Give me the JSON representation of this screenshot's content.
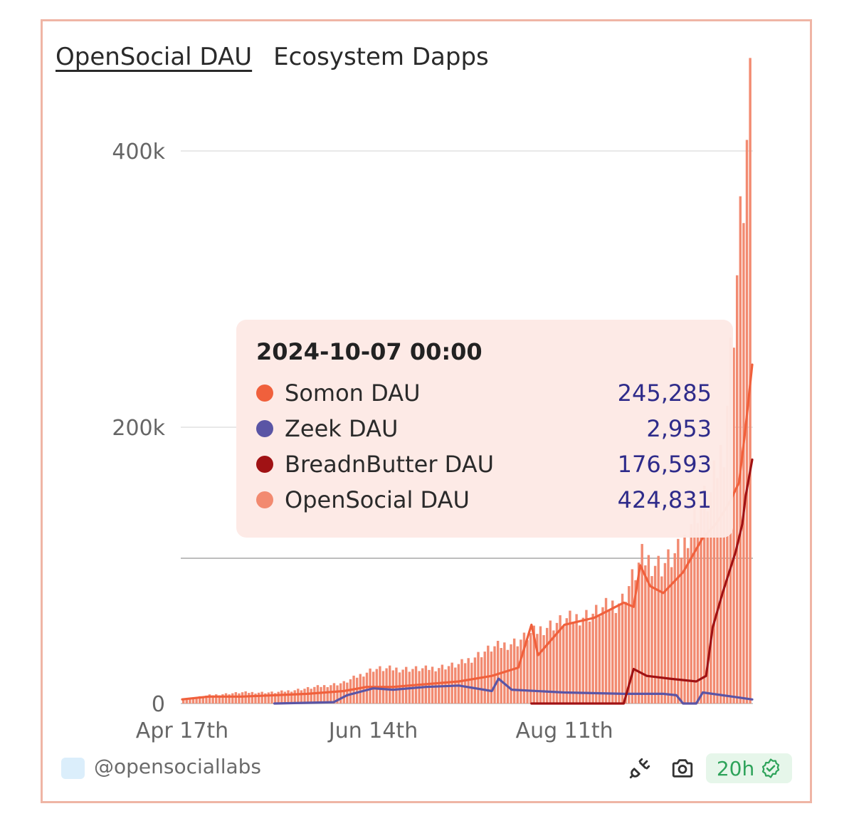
{
  "tabs": [
    {
      "label": "OpenSocial DAU",
      "active": true
    },
    {
      "label": "Ecosystem Dapps",
      "active": false
    }
  ],
  "chart_data": {
    "type": "bar",
    "x_start": "2024-04-17",
    "x_end": "2024-10-07",
    "xticks": [
      "Apr 17th",
      "Jun 14th",
      "Aug 11th"
    ],
    "yticks": [
      "0",
      "200k",
      "400k"
    ],
    "ylim": [
      0,
      430000
    ],
    "grid": true,
    "series": [
      {
        "name": "OpenSocial DAU",
        "type": "bar",
        "color": "#f28a70",
        "points": [
          [
            "2024-04-17",
            3000
          ],
          [
            "2024-04-25",
            6000
          ],
          [
            "2024-05-05",
            8000
          ],
          [
            "2024-05-15",
            8000
          ],
          [
            "2024-05-25",
            11000
          ],
          [
            "2024-06-05",
            15000
          ],
          [
            "2024-06-14",
            25000
          ],
          [
            "2024-06-20",
            25000
          ],
          [
            "2024-06-30",
            25000
          ],
          [
            "2024-07-10",
            28000
          ],
          [
            "2024-07-20",
            40000
          ],
          [
            "2024-07-28",
            45000
          ],
          [
            "2024-08-05",
            55000
          ],
          [
            "2024-08-11",
            60000
          ],
          [
            "2024-08-20",
            65000
          ],
          [
            "2024-08-29",
            75000
          ],
          [
            "2024-09-04",
            105000
          ],
          [
            "2024-09-10",
            100000
          ],
          [
            "2024-09-16",
            110000
          ],
          [
            "2024-09-20",
            140000
          ],
          [
            "2024-09-25",
            150000
          ],
          [
            "2024-09-29",
            190000
          ],
          [
            "2024-10-02",
            280000
          ],
          [
            "2024-10-04",
            340000
          ],
          [
            "2024-10-06",
            400000
          ],
          [
            "2024-10-07",
            424831
          ]
        ]
      },
      {
        "name": "Somon DAU",
        "type": "line",
        "color": "#f0603c",
        "points": [
          [
            "2024-04-17",
            3000
          ],
          [
            "2024-04-25",
            5000
          ],
          [
            "2024-05-05",
            5000
          ],
          [
            "2024-05-15",
            6000
          ],
          [
            "2024-05-25",
            7000
          ],
          [
            "2024-06-05",
            9000
          ],
          [
            "2024-06-12",
            12000
          ],
          [
            "2024-06-20",
            12000
          ],
          [
            "2024-06-30",
            14000
          ],
          [
            "2024-07-10",
            16000
          ],
          [
            "2024-07-20",
            20000
          ],
          [
            "2024-07-28",
            26000
          ],
          [
            "2024-08-01",
            57000
          ],
          [
            "2024-08-03",
            35000
          ],
          [
            "2024-08-11",
            57000
          ],
          [
            "2024-08-20",
            62000
          ],
          [
            "2024-08-29",
            73000
          ],
          [
            "2024-09-01",
            70000
          ],
          [
            "2024-09-03",
            100000
          ],
          [
            "2024-09-06",
            85000
          ],
          [
            "2024-09-10",
            80000
          ],
          [
            "2024-09-16",
            95000
          ],
          [
            "2024-09-22",
            120000
          ],
          [
            "2024-09-26",
            130000
          ],
          [
            "2024-09-30",
            145000
          ],
          [
            "2024-10-03",
            160000
          ],
          [
            "2024-10-05",
            200000
          ],
          [
            "2024-10-07",
            245285
          ]
        ]
      },
      {
        "name": "Zeek DAU",
        "type": "line",
        "color": "#5a55a5",
        "points": [
          [
            "2024-05-15",
            0
          ],
          [
            "2024-06-02",
            1000
          ],
          [
            "2024-06-06",
            6000
          ],
          [
            "2024-06-14",
            11000
          ],
          [
            "2024-06-20",
            10000
          ],
          [
            "2024-06-30",
            12000
          ],
          [
            "2024-07-10",
            13000
          ],
          [
            "2024-07-20",
            9000
          ],
          [
            "2024-07-22",
            18000
          ],
          [
            "2024-07-26",
            10000
          ],
          [
            "2024-08-11",
            8000
          ],
          [
            "2024-08-29",
            7000
          ],
          [
            "2024-09-10",
            7000
          ],
          [
            "2024-09-14",
            6000
          ],
          [
            "2024-09-16",
            0
          ],
          [
            "2024-09-20",
            0
          ],
          [
            "2024-09-22",
            8000
          ],
          [
            "2024-10-01",
            5000
          ],
          [
            "2024-10-07",
            2953
          ]
        ]
      },
      {
        "name": "BreadnButter DAU",
        "type": "line",
        "color": "#a01214",
        "points": [
          [
            "2024-08-01",
            0
          ],
          [
            "2024-08-29",
            0
          ],
          [
            "2024-09-01",
            25000
          ],
          [
            "2024-09-05",
            20000
          ],
          [
            "2024-09-12",
            18000
          ],
          [
            "2024-09-20",
            16000
          ],
          [
            "2024-09-23",
            20000
          ],
          [
            "2024-09-25",
            55000
          ],
          [
            "2024-09-28",
            80000
          ],
          [
            "2024-10-02",
            110000
          ],
          [
            "2024-10-04",
            130000
          ],
          [
            "2024-10-05",
            150000
          ],
          [
            "2024-10-07",
            176593
          ]
        ]
      }
    ]
  },
  "tooltip": {
    "title": "2024-10-07 00:00",
    "rows": [
      {
        "name": "Somon DAU",
        "value": "245,285",
        "color": "#f0603c"
      },
      {
        "name": "Zeek DAU",
        "value": "2,953",
        "color": "#5a55a5"
      },
      {
        "name": "BreadnButter DAU",
        "value": "176,593",
        "color": "#a01214"
      },
      {
        "name": "OpenSocial DAU",
        "value": "424,831",
        "color": "#f28a70"
      }
    ]
  },
  "footer": {
    "handle": "@opensociallabs",
    "badge": "20h",
    "icons": [
      "unplug-icon",
      "camera-icon",
      "verified-check-icon"
    ]
  }
}
